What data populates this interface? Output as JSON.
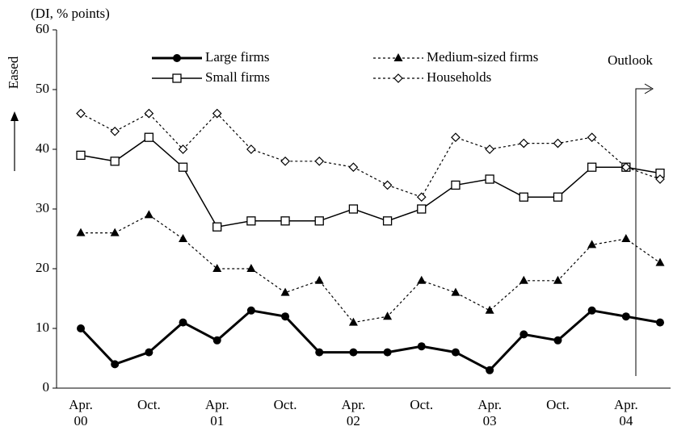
{
  "chart_data": {
    "type": "line",
    "y_label": "(DI, % points)",
    "side_label": "Eased",
    "annotation": "Outlook",
    "categories": [
      "Apr. 00",
      null,
      "Oct.",
      null,
      "Apr. 01",
      null,
      "Oct.",
      null,
      "Apr. 02",
      null,
      "Oct.",
      null,
      "Apr. 03",
      null,
      "Oct.",
      null,
      "Apr. 04",
      null
    ],
    "series": [
      {
        "name": "Large firms",
        "color": "#000000",
        "marker": "circle",
        "dashed": false,
        "width": 3,
        "values": [
          10,
          4,
          6,
          11,
          8,
          13,
          12,
          6,
          6,
          6,
          7,
          6,
          3,
          9,
          8,
          13,
          12,
          11
        ]
      },
      {
        "name": "Medium-sized firms",
        "color": "#000000",
        "marker": "triangle",
        "dashed": true,
        "width": 1.2,
        "values": [
          26,
          26,
          29,
          25,
          20,
          20,
          16,
          18,
          11,
          12,
          18,
          16,
          13,
          18,
          18,
          24,
          25,
          21
        ]
      },
      {
        "name": "Small firms",
        "color": "#000000",
        "marker": "square",
        "dashed": false,
        "width": 1.5,
        "values": [
          39,
          38,
          42,
          37,
          27,
          28,
          28,
          28,
          30,
          28,
          30,
          34,
          35,
          32,
          32,
          37,
          37,
          36
        ]
      },
      {
        "name": "Households",
        "color": "#000000",
        "marker": "diamond",
        "dashed": true,
        "width": 1.2,
        "values": [
          46,
          43,
          46,
          40,
          46,
          40,
          38,
          38,
          37,
          34,
          32,
          42,
          40,
          41,
          41,
          42,
          37,
          35
        ]
      }
    ],
    "ylim": [
      0,
      60
    ],
    "yticks": [
      0,
      10,
      20,
      30,
      40,
      50,
      60
    ],
    "grid": false
  }
}
